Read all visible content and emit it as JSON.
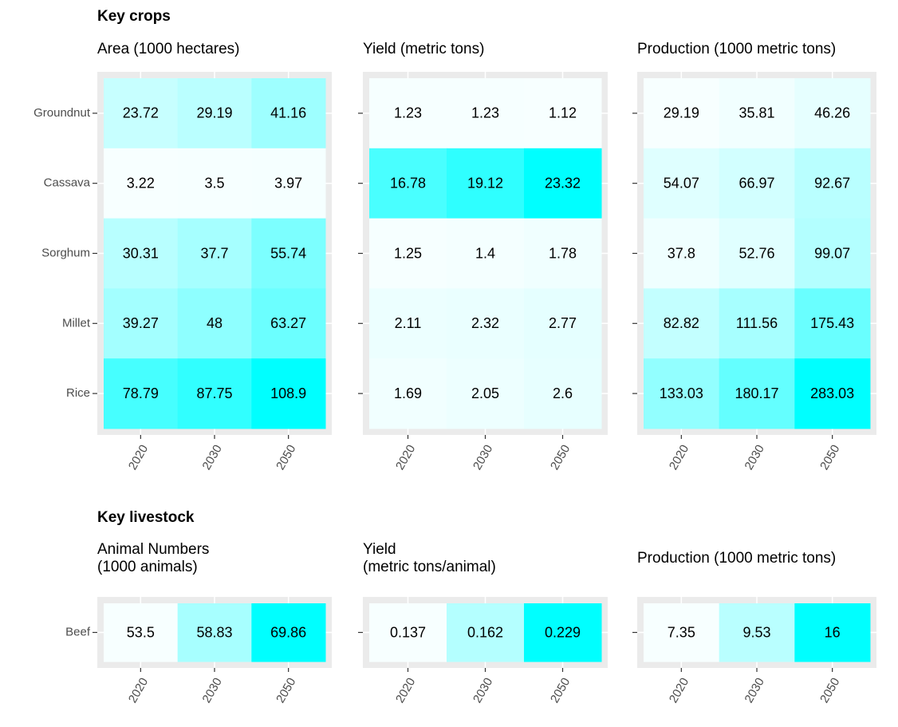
{
  "chart_data": [
    {
      "type": "heatmap",
      "section": "Key crops",
      "title": "Area (1000 hectares)",
      "categories": [
        "2020",
        "2030",
        "2050"
      ],
      "rows": [
        "Groundnut",
        "Cassava",
        "Sorghum",
        "Millet",
        "Rice"
      ],
      "values": [
        [
          23.72,
          29.19,
          41.16
        ],
        [
          3.22,
          3.5,
          3.97
        ],
        [
          30.31,
          37.7,
          55.74
        ],
        [
          39.27,
          48,
          63.27
        ],
        [
          78.79,
          87.75,
          108.9
        ]
      ],
      "colors": [
        "#f7ffff",
        "#00ffff"
      ],
      "grid": true
    },
    {
      "type": "heatmap",
      "title": "Yield (metric tons)",
      "categories": [
        "2020",
        "2030",
        "2050"
      ],
      "values": [
        [
          1.23,
          1.23,
          1.12
        ],
        [
          16.78,
          19.12,
          23.32
        ],
        [
          1.25,
          1.4,
          1.78
        ],
        [
          2.11,
          2.32,
          2.77
        ],
        [
          1.69,
          2.05,
          2.6
        ]
      ],
      "colors": [
        "#f7ffff",
        "#00ffff"
      ],
      "grid": true
    },
    {
      "type": "heatmap",
      "title": "Production (1000 metric tons)",
      "categories": [
        "2020",
        "2030",
        "2050"
      ],
      "values": [
        [
          29.19,
          35.81,
          46.26
        ],
        [
          54.07,
          66.97,
          92.67
        ],
        [
          37.8,
          52.76,
          99.07
        ],
        [
          82.82,
          111.56,
          175.43
        ],
        [
          133.03,
          180.17,
          283.03
        ]
      ],
      "colors": [
        "#f7ffff",
        "#00ffff"
      ],
      "grid": true
    },
    {
      "type": "heatmap",
      "section": "Key livestock",
      "title": "Animal Numbers\n(1000 animals)",
      "categories": [
        "2020",
        "2030",
        "2050"
      ],
      "rows": [
        "Beef"
      ],
      "values": [
        [
          53.5,
          58.83,
          69.86
        ]
      ],
      "colors": [
        "#f7ffff",
        "#00ffff"
      ],
      "grid": true
    },
    {
      "type": "heatmap",
      "title": "Yield\n(metric tons/animal)",
      "categories": [
        "2020",
        "2030",
        "2050"
      ],
      "values": [
        [
          0.137,
          0.162,
          0.229
        ]
      ],
      "colors": [
        "#f7ffff",
        "#00ffff"
      ],
      "grid": true
    },
    {
      "type": "heatmap",
      "title": "Production (1000 metric tons)",
      "categories": [
        "2020",
        "2030",
        "2050"
      ],
      "values": [
        [
          7.35,
          9.53,
          16
        ]
      ],
      "colors": [
        "#f7ffff",
        "#00ffff"
      ],
      "grid": true
    }
  ]
}
